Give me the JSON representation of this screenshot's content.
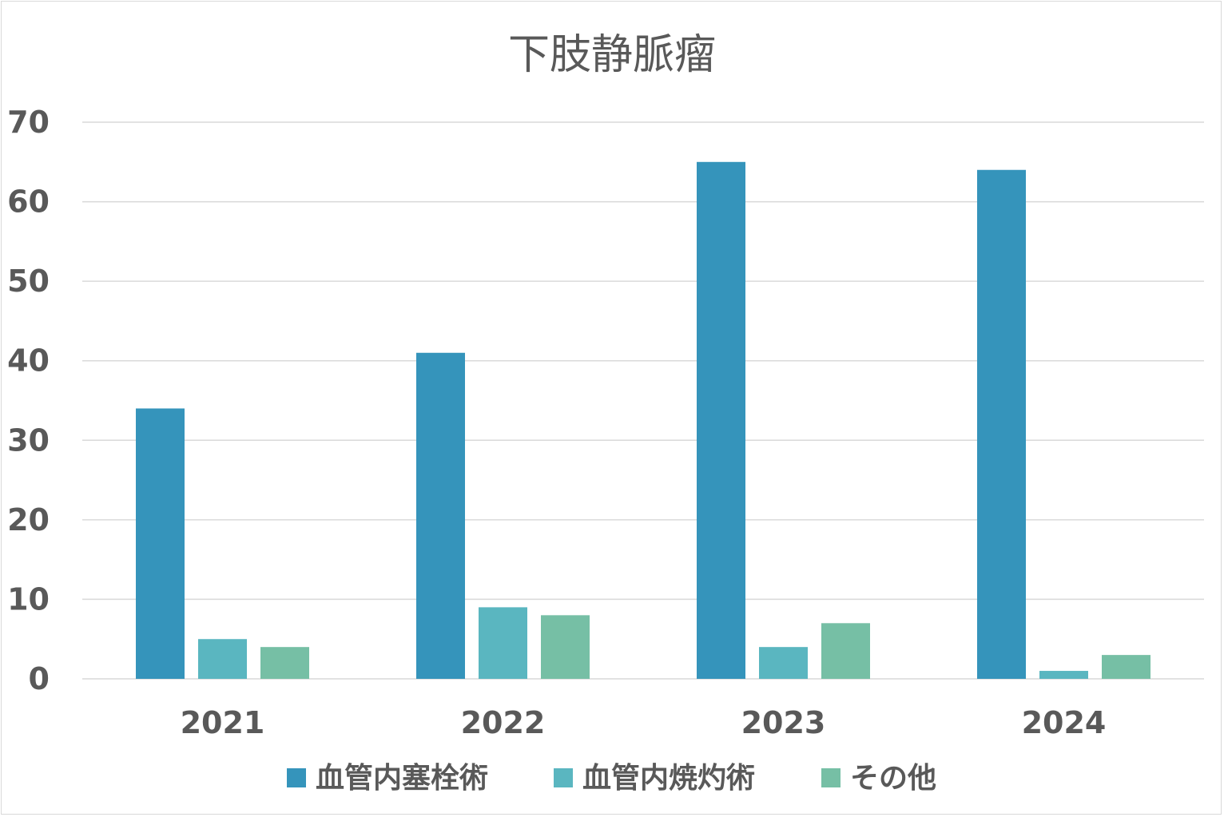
{
  "chart_data": {
    "type": "bar",
    "title": "下肢静脈瘤",
    "xlabel": "",
    "ylabel": "",
    "categories": [
      "2021",
      "2022",
      "2023",
      "2024"
    ],
    "series": [
      {
        "name": "血管内塞栓術",
        "color": "#3594bb",
        "values": [
          34,
          41,
          65,
          64
        ]
      },
      {
        "name": "血管内焼灼術",
        "color": "#5ab6c0",
        "values": [
          5,
          9,
          4,
          1
        ]
      },
      {
        "name": "その他",
        "color": "#76bfa5",
        "values": [
          4,
          8,
          7,
          3
        ]
      }
    ],
    "ylim": [
      0,
      70
    ],
    "yticks": [
      0,
      10,
      20,
      30,
      40,
      50,
      60,
      70
    ],
    "grid": true,
    "legend": "bottom"
  }
}
